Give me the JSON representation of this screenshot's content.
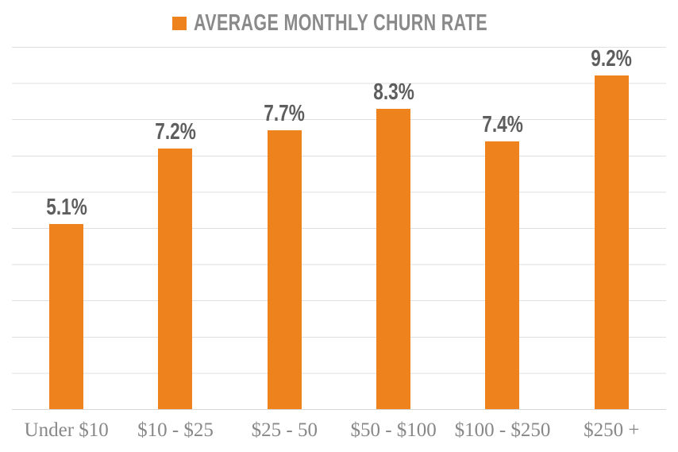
{
  "legend": {
    "label": "AVERAGE MONTHLY CHURN RATE"
  },
  "chart_data": {
    "type": "bar",
    "title": "AVERAGE MONTHLY CHURN RATE",
    "categories": [
      "Under $10",
      "$10 - $25",
      "$25 - 50",
      "$50 - $100",
      "$100 - $250",
      "$250 +"
    ],
    "values": [
      5.1,
      7.2,
      7.7,
      8.3,
      7.4,
      9.2
    ],
    "value_labels": [
      "5.1%",
      "7.2%",
      "7.7%",
      "8.3%",
      "7.4%",
      "9.2%"
    ],
    "xlabel": "",
    "ylabel": "",
    "ylim": [
      0,
      10
    ],
    "gridline_interval": 1,
    "grid": true,
    "y_tick_labels_visible": false,
    "legend_position": "top-center",
    "bar_color": "#EE831E",
    "value_label_color": "#5E5E5E",
    "category_label_color": "#888888",
    "gridline_color": "#DFDFDF",
    "axis_line_color": "#D6D6D6",
    "title_color": "#8A8A8A"
  }
}
